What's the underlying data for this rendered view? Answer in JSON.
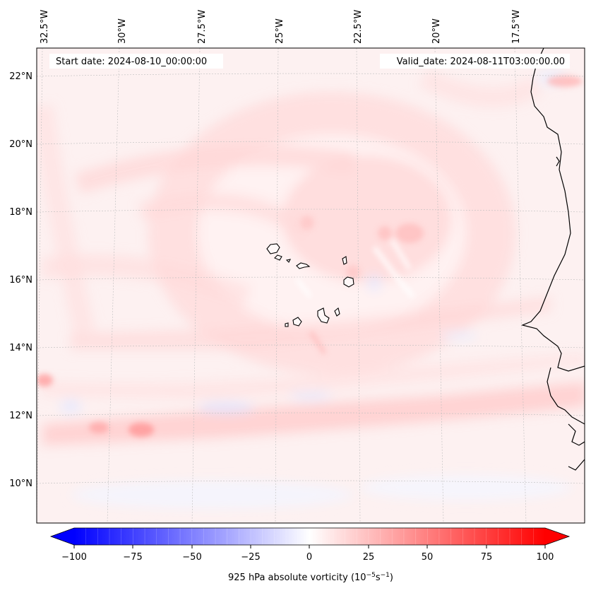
{
  "map": {
    "start_label": "Start date: 2024-08-10_00:00:00",
    "valid_label": "Valid_date: 2024-08-11T03:00:00.00",
    "lon_labels": [
      "32.5°W",
      "30°W",
      "27.5°W",
      "25°W",
      "22.5°W",
      "20°W",
      "17.5°W"
    ],
    "lat_labels": [
      "22°N",
      "20°N",
      "18°N",
      "16°N",
      "14°N",
      "12°N",
      "10°N"
    ],
    "extent": {
      "lon_min": -32.5,
      "lon_max": -15.5,
      "lat_min": 8.9,
      "lat_max": 22.8
    },
    "gridlines": true,
    "islands": [
      "Santo Antão",
      "São Vicente",
      "Santa Luzia",
      "São Nicolau",
      "Sal",
      "Boa Vista",
      "Maio",
      "Santiago",
      "Fogo",
      "Brava"
    ]
  },
  "colorbar": {
    "label": "925 hPa absolute vorticity (10",
    "label_exp1": "−5",
    "label_mid": "s",
    "label_exp2": "−1",
    "label_end": ")",
    "ticks": [
      "−100",
      "−75",
      "−50",
      "−25",
      "0",
      "25",
      "50",
      "75",
      "100"
    ],
    "range": [
      -100,
      100
    ],
    "extend": "both",
    "cmap": "bwr",
    "colors": {
      "min": "#0000ff",
      "mid": "#ffffff",
      "max": "#ff0000"
    }
  }
}
